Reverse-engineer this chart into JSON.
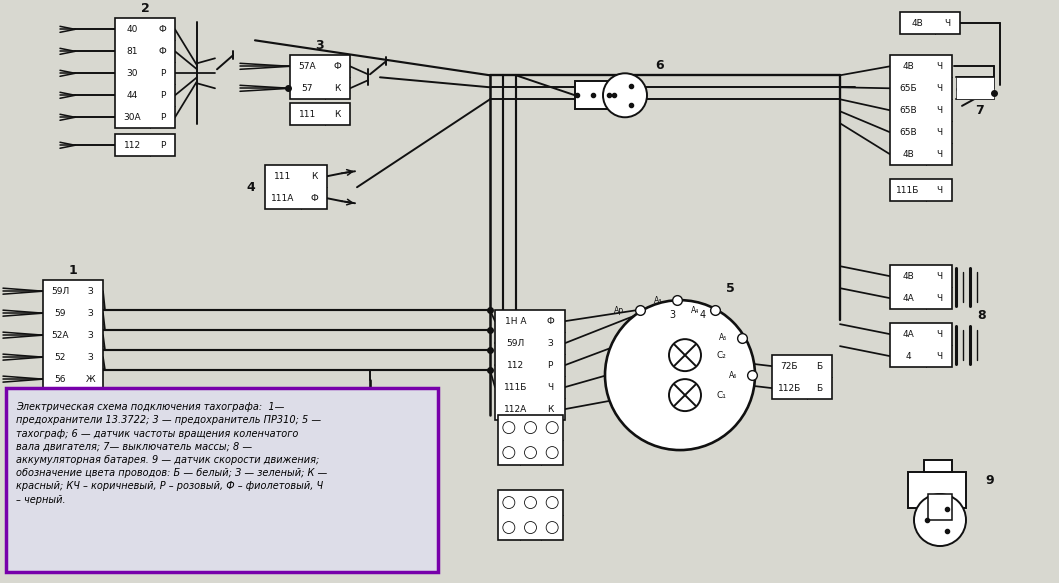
{
  "bg_color": "#d8d8d0",
  "line_color": "#111111",
  "box_color": "#ffffff",
  "title_text": "Электрическая схема подключения тахографа:  1—\nпредохранители 13.3722; 3 — предохранитель ПР310; 5 —\nтахограф; 6 — датчик частоты вращения коленчатого\nвала двигателя; 7— выключатель массы; 8 —\nаккумуляторная батарея. 9 — датчик скорости движения;\nобозначение цвета проводов: Б — белый; З — зеленый; К —\nкрасный; КЧ – коричневый, Р – розовый, Ф – фиолетовый, Ч\n– черный.",
  "legend_border_color": "#7700aa",
  "legend_bg": "#dddde8",
  "block2_labels": [
    "40|Ф",
    "81|Ф",
    "30|Р",
    "44|Р",
    "30А|Р"
  ],
  "block2_extra": "112|Р",
  "block3_labels": [
    "57А|Ф",
    "57|К"
  ],
  "block3_extra": "111|К",
  "block4_labels": [
    "111|К",
    "111А|Ф"
  ],
  "block1_labels": [
    "59Л|З",
    "59|З",
    "52А|З",
    "52|З",
    "56|Ж"
  ],
  "block5_labels": [
    "1Н А|Ф",
    "59Л|З",
    "112|Р",
    "111Б|Ч",
    "112А|К"
  ],
  "block7_labels": [
    "4В|Ч",
    "65Б|Ч",
    "65В|Ч",
    "65В|Ч",
    "4В|Ч"
  ],
  "block7_extra": "111Б|Ч",
  "block7_top": "4В|Ч",
  "block8a_labels": [
    "4В|Ч",
    "4А|Ч"
  ],
  "block8b_labels": [
    "4А|Ч",
    "4|Ч"
  ],
  "block72_labels": [
    "72Б|Б",
    "112Б|Б"
  ],
  "lw": 1.4
}
